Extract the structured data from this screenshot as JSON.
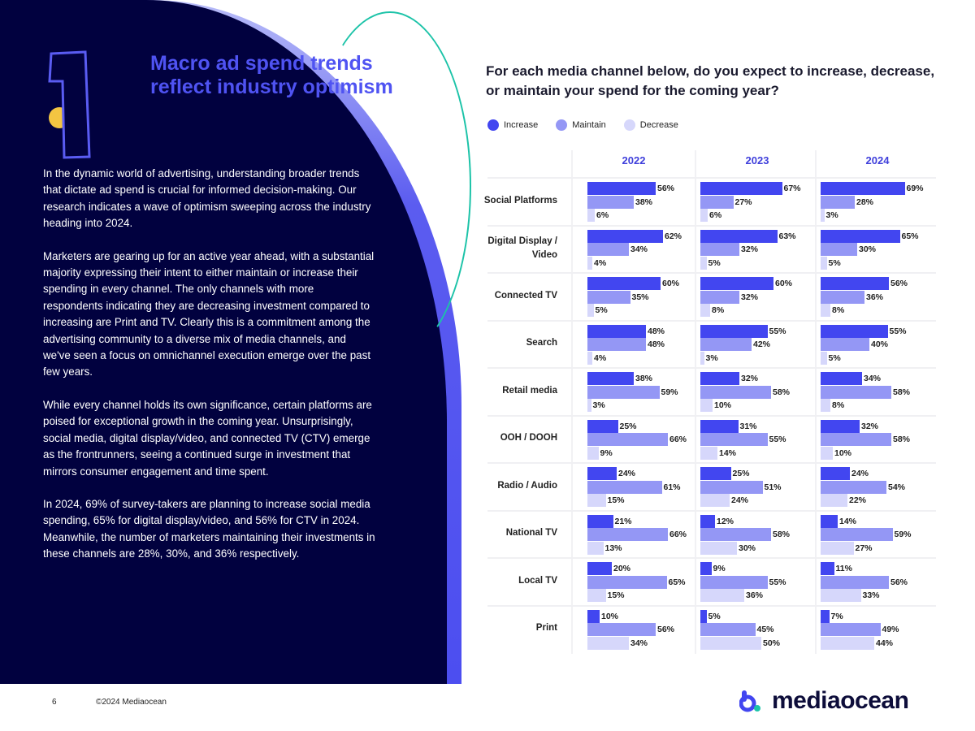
{
  "page": {
    "title": "Macro ad spend trends reflect industry optimism",
    "section_number": "1",
    "paragraphs": [
      "In the dynamic world of advertising, understanding broader trends that dictate ad spend is crucial for informed decision-making. Our research indicates a wave of optimism sweeping across the industry heading into 2024.",
      "Marketers are gearing up for an active year ahead, with a substantial majority expressing their intent to either maintain or increase their spending in every channel. The only channels with more respondents indicating they are decreasing investment compared to increasing are Print and TV. Clearly this is a commitment among the advertising community to a diverse mix of media channels, and we've seen a focus on omnichannel execution emerge over the past few years.",
      "While every channel holds its own significance, certain platforms are poised for exceptional growth in the coming year. Unsurprisingly, social media, digital display/video, and connected TV (CTV) emerge as the frontrunners, seeing a continued surge in investment that mirrors consumer engagement and time spent.",
      "In 2024, 69% of survey-takers are planning to increase social media spending, 65% for digital display/video, and 56% for CTV in 2024. Meanwhile, the number of marketers maintaining their investments in these channels are 28%, 30%, and 36% respectively."
    ]
  },
  "footer": {
    "page_number": "6",
    "copyright": "©2024 Mediaocean",
    "logo": "mediaocean"
  },
  "colors": {
    "increase": "#4246f0",
    "maintain": "#9497f5",
    "decrease": "#d6d7fb"
  },
  "chart_data": {
    "type": "bar",
    "title": "For each media channel below, do you expect to increase, decrease, or maintain your spend for the coming year?",
    "legend": [
      "Increase",
      "Maintain",
      "Decrease"
    ],
    "years": [
      "2022",
      "2023",
      "2024"
    ],
    "categories": [
      "Social Platforms",
      "Digital Display / Video",
      "Connected TV",
      "Search",
      "Retail media",
      "OOH / DOOH",
      "Radio / Audio",
      "National TV",
      "Local TV",
      "Print"
    ],
    "values": {
      "2022": [
        [
          56,
          38,
          6
        ],
        [
          62,
          34,
          4
        ],
        [
          60,
          35,
          5
        ],
        [
          48,
          48,
          4
        ],
        [
          38,
          59,
          3
        ],
        [
          25,
          66,
          9
        ],
        [
          24,
          61,
          15
        ],
        [
          21,
          66,
          13
        ],
        [
          20,
          65,
          15
        ],
        [
          10,
          56,
          34
        ]
      ],
      "2023": [
        [
          67,
          27,
          6
        ],
        [
          63,
          32,
          5
        ],
        [
          60,
          32,
          8
        ],
        [
          55,
          42,
          3
        ],
        [
          32,
          58,
          10
        ],
        [
          31,
          55,
          14
        ],
        [
          25,
          51,
          24
        ],
        [
          12,
          58,
          30
        ],
        [
          9,
          55,
          36
        ],
        [
          5,
          45,
          50
        ]
      ],
      "2024": [
        [
          69,
          28,
          3
        ],
        [
          65,
          30,
          5
        ],
        [
          56,
          36,
          8
        ],
        [
          55,
          40,
          5
        ],
        [
          34,
          58,
          8
        ],
        [
          32,
          58,
          10
        ],
        [
          24,
          54,
          22
        ],
        [
          14,
          59,
          27
        ],
        [
          11,
          56,
          33
        ],
        [
          7,
          49,
          44
        ]
      ]
    },
    "unit": "%"
  }
}
